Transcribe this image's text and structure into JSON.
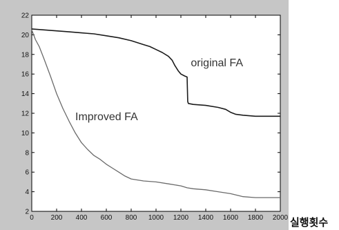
{
  "chart_data": {
    "type": "line",
    "title": "",
    "xlabel": "실행횟수",
    "ylabel": "",
    "xlim": [
      0,
      2000
    ],
    "ylim": [
      2,
      22
    ],
    "x_ticks": [
      0,
      200,
      400,
      600,
      800,
      1000,
      1200,
      1400,
      1600,
      1800,
      2000
    ],
    "y_ticks": [
      2,
      4,
      6,
      8,
      10,
      12,
      14,
      16,
      18,
      20,
      22
    ],
    "grid": false,
    "legend": "none",
    "series": [
      {
        "name": "original FA",
        "color": "#1a1a1a",
        "x": [
          0,
          100,
          200,
          300,
          400,
          500,
          600,
          700,
          800,
          850,
          900,
          950,
          1000,
          1050,
          1100,
          1130,
          1150,
          1180,
          1200,
          1230,
          1250,
          1255,
          1260,
          1300,
          1400,
          1500,
          1560,
          1600,
          1640,
          1700,
          1800,
          1900,
          2000
        ],
        "y": [
          20.6,
          20.5,
          20.4,
          20.3,
          20.2,
          20.1,
          19.9,
          19.7,
          19.4,
          19.2,
          19.0,
          18.8,
          18.5,
          18.2,
          17.8,
          17.4,
          16.9,
          16.3,
          16.0,
          15.8,
          15.7,
          13.2,
          13.0,
          12.9,
          12.8,
          12.6,
          12.4,
          12.1,
          11.9,
          11.8,
          11.7,
          11.7,
          11.7
        ]
      },
      {
        "name": "Improved FA",
        "color": "#6a6a6a",
        "x": [
          0,
          30,
          60,
          100,
          150,
          200,
          250,
          300,
          350,
          400,
          450,
          500,
          550,
          600,
          650,
          700,
          750,
          800,
          900,
          1000,
          1100,
          1200,
          1250,
          1300,
          1400,
          1500,
          1600,
          1700,
          1800,
          1900,
          2000
        ],
        "y": [
          20.5,
          19.5,
          18.8,
          17.5,
          15.8,
          14.0,
          12.5,
          11.2,
          10.0,
          9.0,
          8.3,
          7.7,
          7.3,
          6.8,
          6.4,
          6.0,
          5.6,
          5.3,
          5.1,
          5.0,
          4.8,
          4.6,
          4.4,
          4.3,
          4.2,
          4.0,
          3.8,
          3.5,
          3.4,
          3.4,
          3.4
        ]
      }
    ],
    "annotations": [
      {
        "text": "original FA",
        "x": 1280,
        "y": 16.8
      },
      {
        "text": "Improved FA",
        "x": 350,
        "y": 11.3
      }
    ],
    "colors": {
      "frame": "#c6c6c6",
      "plot_background": "#ffffff",
      "axes": "#000000"
    }
  }
}
